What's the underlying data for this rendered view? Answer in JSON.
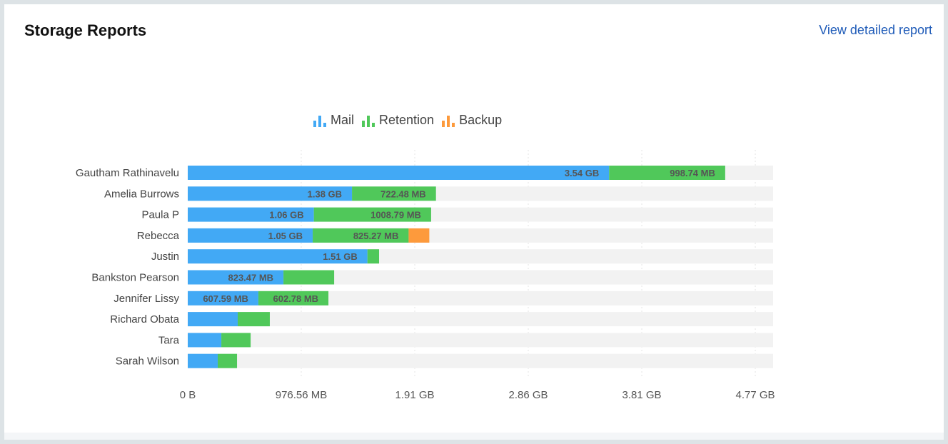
{
  "header": {
    "title": "Storage Reports",
    "link": "View detailed report"
  },
  "chart_data": {
    "type": "bar",
    "orientation": "horizontal",
    "stacked": true,
    "categories": [
      "Gautham Rathinavelu",
      "Amelia Burrows",
      "Paula P",
      "Rebecca",
      "Justin",
      "Bankston Pearson",
      "Jennifer Lissy",
      "Richard Obata",
      "Tara",
      "Sarah Wilson"
    ],
    "unit": "MB",
    "series": [
      {
        "name": "Mail",
        "color": "#42a9f5",
        "values": [
          3625,
          1413,
          1085,
          1075,
          1546,
          823.47,
          607.59,
          430,
          289,
          258
        ],
        "labels": [
          "3.54 GB",
          "1.38 GB",
          "1.06 GB",
          "1.05 GB",
          "1.51 GB",
          "823.47 MB",
          "607.59 MB",
          "",
          "",
          ""
        ]
      },
      {
        "name": "Retention",
        "color": "#50c85a",
        "values": [
          998.74,
          722.48,
          1008.79,
          825.27,
          100,
          436,
          602.78,
          276,
          252,
          166
        ],
        "labels": [
          "998.74 MB",
          "722.48 MB",
          "1008.79 MB",
          "825.27 MB",
          "",
          "",
          "602.78 MB",
          "",
          "",
          ""
        ]
      },
      {
        "name": "Backup",
        "color": "#fd9a3c",
        "values": [
          0,
          0,
          0,
          178,
          0,
          0,
          0,
          0,
          0,
          0
        ],
        "labels": [
          "",
          "",
          "",
          "",
          "",
          "",
          "",
          "",
          "",
          ""
        ]
      }
    ],
    "xticks": [
      0,
      976.56,
      1953.12,
      2929.68,
      3906.24,
      4882.8
    ],
    "xtick_labels": [
      "0 B",
      "976.56 MB",
      "1.91 GB",
      "2.86 GB",
      "3.81 GB",
      "4.77 GB"
    ],
    "xlim": [
      0,
      5036
    ],
    "grid": true,
    "legend": "top-center",
    "track_color": "#f2f2f2"
  }
}
